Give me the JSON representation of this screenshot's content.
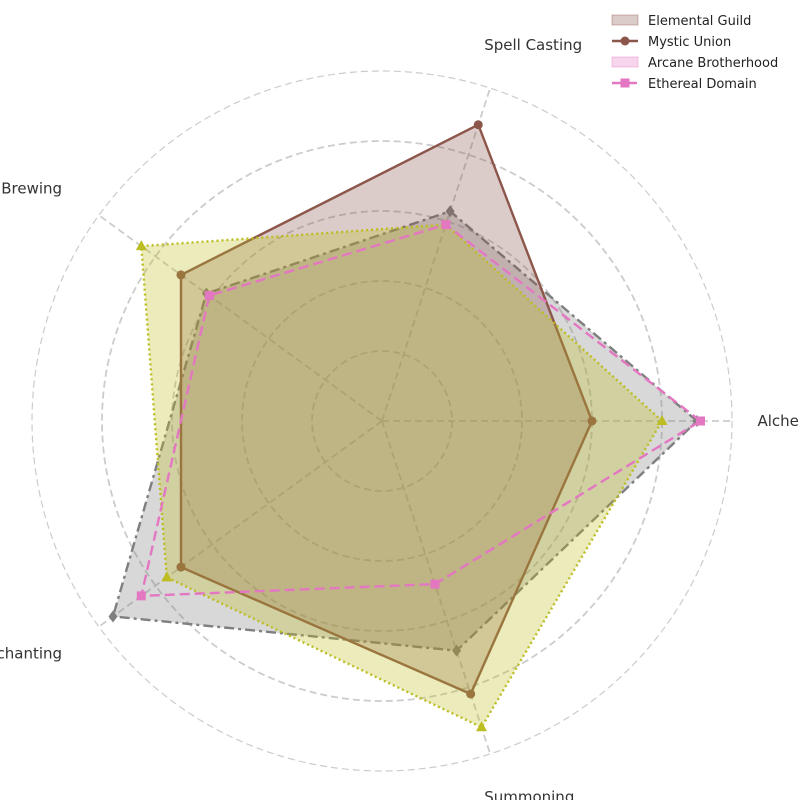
{
  "chart_data": {
    "type": "radar",
    "axes": [
      "Alchemy",
      "Spell Casting",
      "Potion Brewing",
      "Enchanting",
      "Summoning"
    ],
    "rmax": 10,
    "grid_rings": [
      2,
      4,
      6,
      8,
      10
    ],
    "grid": true,
    "legend_position": "top-right",
    "series": [
      {
        "name": "",
        "values": [
          9.0,
          6.3,
          6.2,
          9.5,
          6.9
        ],
        "color": "#7f7f7f",
        "line_style": "dashdot",
        "marker": "diamond",
        "filled": true
      },
      {
        "name": "Mystic Union",
        "values": [
          6.0,
          8.9,
          7.1,
          7.1,
          8.2
        ],
        "color": "#8c564b",
        "line_style": "solid",
        "marker": "circle",
        "filled": true
      },
      {
        "name": "",
        "values": [
          8.0,
          5.9,
          8.5,
          7.6,
          9.2
        ],
        "color": "#bcbd22",
        "line_style": "dotted",
        "marker": "triangle",
        "filled": true
      },
      {
        "name": "Ethereal Domain",
        "values": [
          9.1,
          5.9,
          6.1,
          8.5,
          4.9
        ],
        "color": "#e377c2",
        "line_style": "dashed",
        "marker": "square",
        "filled": false
      }
    ],
    "legend": [
      {
        "label": "Elemental Guild",
        "kind": "patch",
        "color": "#8c564b"
      },
      {
        "label": "Mystic Union",
        "kind": "line",
        "color": "#8c564b",
        "marker": "circle",
        "line_style": "solid"
      },
      {
        "label": "Arcane Brotherhood",
        "kind": "patch",
        "color": "#e377c2"
      },
      {
        "label": "Ethereal Domain",
        "kind": "line",
        "color": "#e377c2",
        "marker": "square",
        "line_style": "dashed"
      }
    ]
  }
}
